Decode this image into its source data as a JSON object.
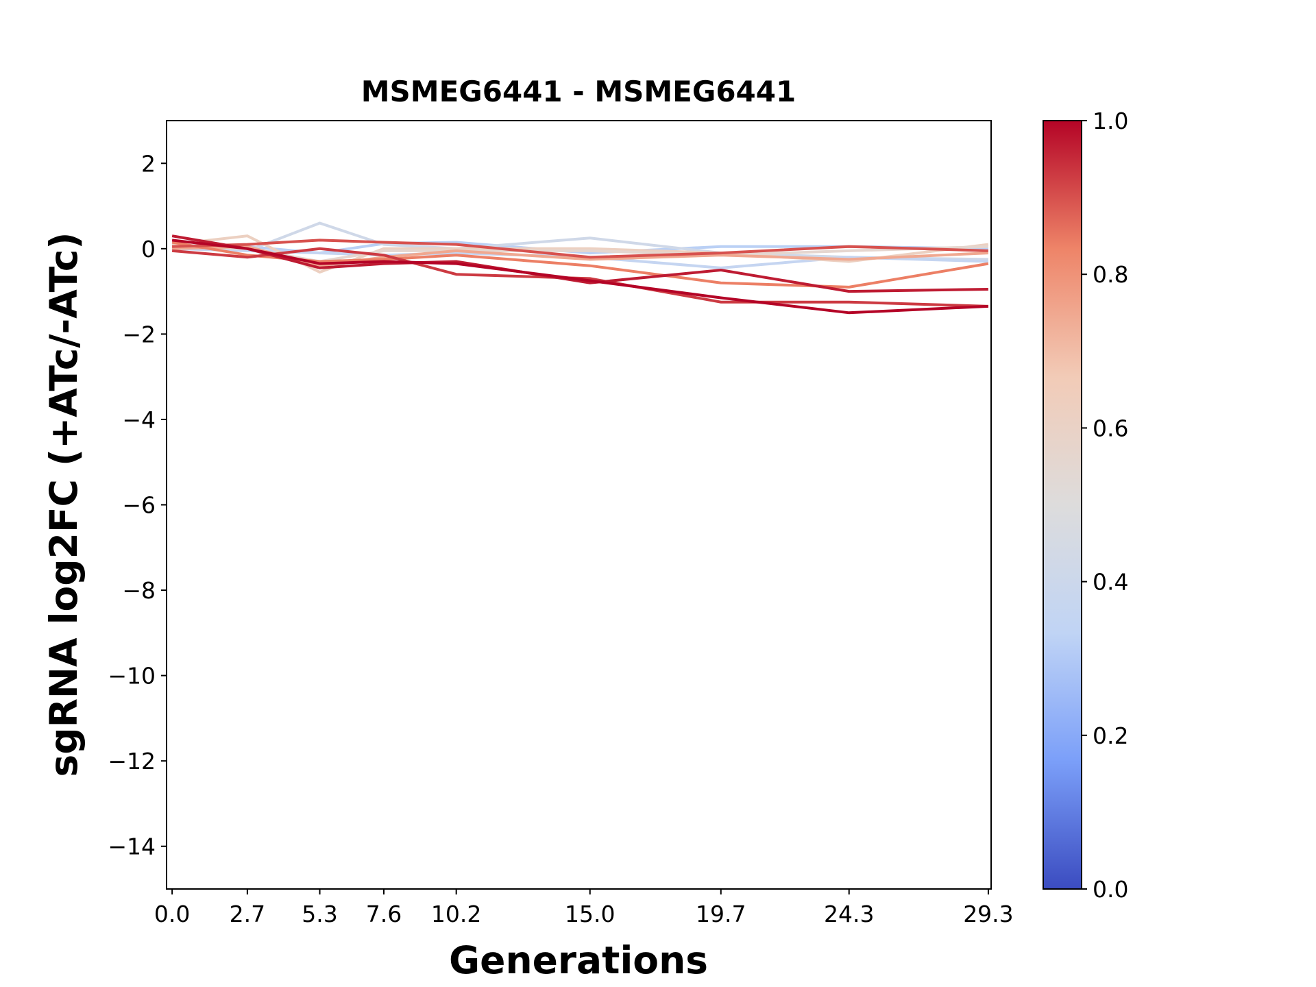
{
  "chart_data": {
    "type": "line",
    "title": "MSMEG6441 - MSMEG6441",
    "xlabel": "Generations",
    "ylabel": "sgRNA log2FC (+ATc/-ATc)",
    "x": [
      0.0,
      2.7,
      5.3,
      7.6,
      10.2,
      15.0,
      19.7,
      24.3,
      29.3
    ],
    "x_tick_labels": [
      "0.0",
      "2.7",
      "5.3",
      "7.6",
      "10.2",
      "15.0",
      "19.7",
      "24.3",
      "29.3"
    ],
    "xlim": [
      -0.2,
      29.4
    ],
    "ylim": [
      -15,
      3
    ],
    "y_ticks": [
      2,
      0,
      -2,
      -4,
      -6,
      -8,
      -10,
      -12,
      -14
    ],
    "y_tick_labels": [
      "2",
      "0",
      "−2",
      "−4",
      "−6",
      "−8",
      "−10",
      "−12",
      "−14"
    ],
    "grid": false,
    "colorbar": {
      "min": 0.0,
      "max": 1.0,
      "colormap": "coolwarm",
      "colors": [
        "#3b4cc0",
        "#7b9ff9",
        "#c0d4f5",
        "#dddcdc",
        "#f2cbb7",
        "#ee8468",
        "#b40426"
      ],
      "tick_values": [
        0.0,
        0.2,
        0.4,
        0.6,
        0.8,
        1.0
      ],
      "tick_labels": [
        "0.0",
        "0.2",
        "0.4",
        "0.6",
        "0.8",
        "1.0"
      ]
    },
    "series": [
      {
        "strength": 0.32,
        "values": [
          0.08,
          0.05,
          -0.1,
          0.12,
          0.15,
          -0.1,
          0.05,
          0.05,
          0.0
        ]
      },
      {
        "strength": 0.42,
        "values": [
          0.1,
          -0.05,
          0.6,
          0.1,
          0.0,
          0.25,
          -0.1,
          -0.2,
          -0.25
        ]
      },
      {
        "strength": 0.36,
        "values": [
          0.0,
          -0.05,
          -0.1,
          -0.15,
          -0.1,
          -0.2,
          -0.45,
          -0.2,
          -0.3
        ]
      },
      {
        "strength": 0.62,
        "values": [
          0.1,
          0.3,
          -0.55,
          0.0,
          0.0,
          0.0,
          -0.1,
          -0.3,
          0.1
        ]
      },
      {
        "strength": 0.56,
        "values": [
          0.05,
          0.0,
          -0.3,
          -0.05,
          -0.05,
          -0.05,
          -0.15,
          -0.05,
          0.05
        ]
      },
      {
        "strength": 0.75,
        "values": [
          0.0,
          0.05,
          -0.4,
          -0.2,
          -0.05,
          -0.25,
          -0.15,
          -0.25,
          -0.1
        ]
      },
      {
        "strength": 0.84,
        "values": [
          0.15,
          -0.15,
          -0.3,
          -0.25,
          -0.15,
          -0.4,
          -0.8,
          -0.9,
          -0.35
        ]
      },
      {
        "strength": 0.9,
        "values": [
          0.05,
          0.1,
          0.2,
          0.15,
          0.1,
          -0.2,
          -0.1,
          0.05,
          -0.05
        ]
      },
      {
        "strength": 0.93,
        "values": [
          -0.05,
          -0.2,
          0.0,
          -0.15,
          -0.6,
          -0.7,
          -1.25,
          -1.25,
          -1.35
        ]
      },
      {
        "strength": 0.97,
        "values": [
          0.3,
          0.0,
          -0.45,
          -0.35,
          -0.3,
          -0.8,
          -0.5,
          -1.0,
          -0.95
        ]
      },
      {
        "strength": 1.0,
        "values": [
          0.2,
          0.0,
          -0.35,
          -0.3,
          -0.35,
          -0.75,
          -1.15,
          -1.5,
          -1.35
        ]
      }
    ]
  }
}
